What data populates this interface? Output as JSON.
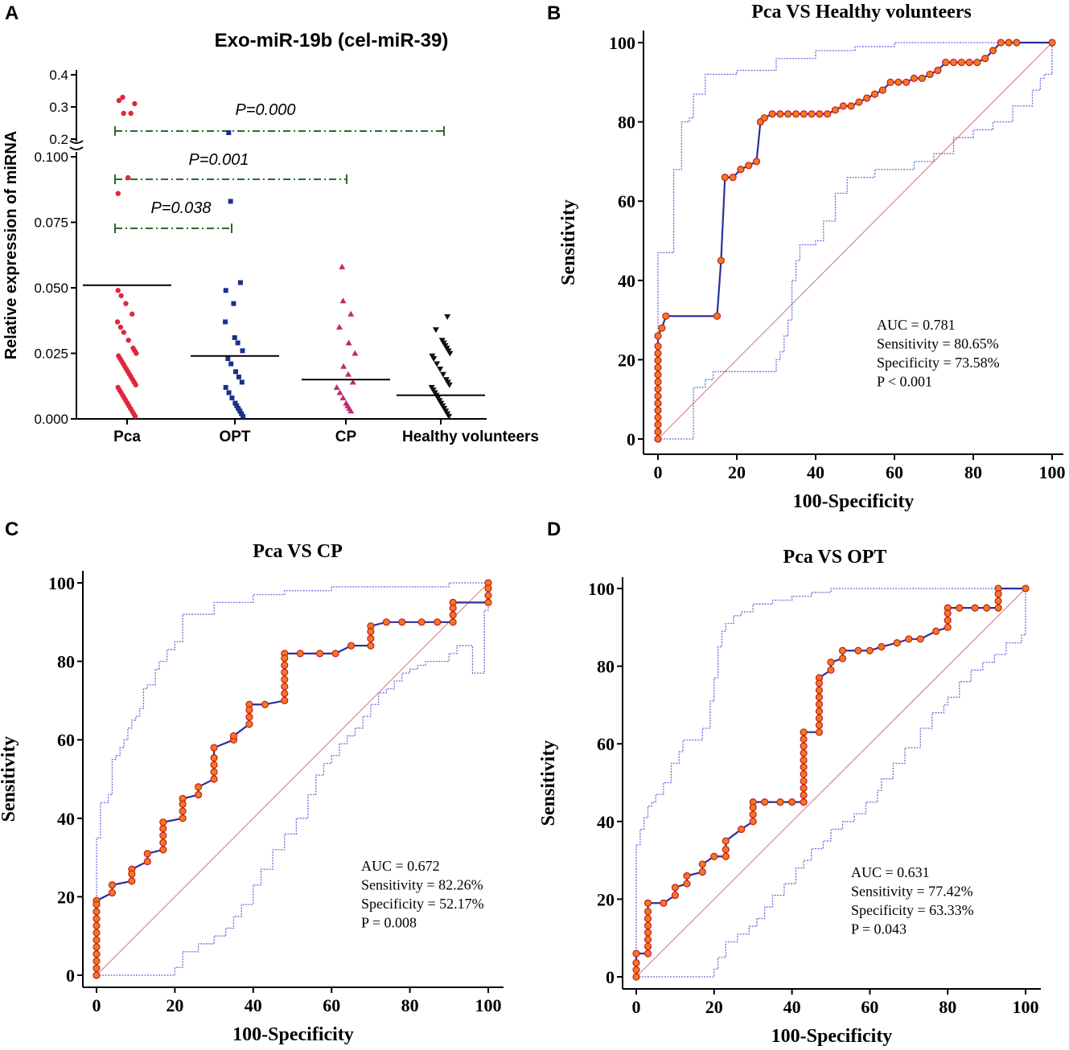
{
  "panel_letters": [
    "A",
    "B",
    "C",
    "D"
  ],
  "colors": {
    "pca": "#e0263e",
    "opt": "#1c2f8a",
    "cp": "#c0286e",
    "hv": "#111111",
    "bracket": "#2a6a2a",
    "roc_line": "#2a2fa0",
    "roc_marker_fill": "#f07a22",
    "roc_marker_stroke": "#c81c1c",
    "ci": "#6a6ae0",
    "diagonal": "#d68a8a"
  },
  "chart_data": [
    {
      "type": "scatter",
      "panel": "A",
      "title": "Exo-miR-19b (cel-miR-39)",
      "ylabel": "Relative expression of miRNA",
      "xlabel": "",
      "categories": [
        "Pca",
        "OPT",
        "CP",
        "Healthy volunteers"
      ],
      "broken_axis": {
        "lower_range": [
          0,
          0.1
        ],
        "upper_range": [
          0.2,
          0.4
        ],
        "lower_ticks": [
          "0.000",
          "0.025",
          "0.050",
          "0.075",
          "0.100"
        ],
        "upper_ticks": [
          "0.2",
          "0.3",
          "0.4"
        ]
      },
      "means": [
        0.051,
        0.024,
        0.015,
        0.009
      ],
      "comparisons": [
        {
          "label": "P=0.000",
          "from": "Pca",
          "to": "Healthy volunteers"
        },
        {
          "label": "P=0.001",
          "from": "Pca",
          "to": "CP"
        },
        {
          "label": "P=0.038",
          "from": "Pca",
          "to": "OPT"
        }
      ],
      "series": [
        {
          "name": "Pca",
          "marker": "circle",
          "values": [
            0.33,
            0.32,
            0.31,
            0.28,
            0.28,
            0.092,
            0.086,
            0.049,
            0.047,
            0.044,
            0.04,
            0.037,
            0.035,
            0.033,
            0.03,
            0.027,
            0.026,
            0.025,
            0.024,
            0.023,
            0.022,
            0.021,
            0.02,
            0.019,
            0.018,
            0.017,
            0.016,
            0.015,
            0.014,
            0.013,
            0.012,
            0.011,
            0.01,
            0.009,
            0.008,
            0.007,
            0.006,
            0.005,
            0.004,
            0.003,
            0.002,
            0.001
          ]
        },
        {
          "name": "OPT",
          "marker": "square",
          "values": [
            0.22,
            0.083,
            0.052,
            0.049,
            0.044,
            0.037,
            0.031,
            0.029,
            0.026,
            0.023,
            0.021,
            0.018,
            0.016,
            0.014,
            0.012,
            0.01,
            0.008,
            0.006,
            0.005,
            0.004,
            0.003,
            0.002,
            0.001
          ]
        },
        {
          "name": "CP",
          "marker": "triangle-up",
          "values": [
            0.058,
            0.045,
            0.04,
            0.035,
            0.029,
            0.025,
            0.02,
            0.017,
            0.014,
            0.012,
            0.01,
            0.008,
            0.006,
            0.005,
            0.004,
            0.003
          ]
        },
        {
          "name": "Healthy volunteers",
          "marker": "triangle-down",
          "values": [
            0.039,
            0.034,
            0.03,
            0.029,
            0.028,
            0.027,
            0.026,
            0.025,
            0.024,
            0.023,
            0.021,
            0.019,
            0.017,
            0.015,
            0.014,
            0.013,
            0.012,
            0.011,
            0.01,
            0.009,
            0.008,
            0.007,
            0.006,
            0.005,
            0.004,
            0.003,
            0.002,
            0.001
          ]
        }
      ]
    },
    {
      "type": "line",
      "panel": "B",
      "title": "Pca VS Healthy volunteers",
      "xlabel": "100-Specificity",
      "ylabel": "Sensitivity",
      "xlim": [
        0,
        100
      ],
      "ylim": [
        0,
        100
      ],
      "xticks": [
        "0",
        "20",
        "40",
        "60",
        "80",
        "100"
      ],
      "yticks": [
        "0",
        "20",
        "40",
        "60",
        "80",
        "100"
      ],
      "stats": [
        "AUC = 0.781",
        "Sensitivity = 80.65%",
        "Specificity = 73.58%",
        "P < 0.001"
      ],
      "roc": {
        "x": [
          0,
          0,
          1,
          2,
          15,
          16,
          17,
          19,
          21,
          23,
          25,
          26,
          27,
          29,
          31,
          33,
          35,
          37,
          39,
          41,
          43,
          45,
          47,
          49,
          51,
          53,
          55,
          57,
          59,
          61,
          63,
          65,
          67,
          69,
          71,
          73,
          75,
          77,
          79,
          81,
          83,
          85,
          87,
          89,
          91,
          100
        ],
        "y": [
          0,
          26,
          28,
          31,
          31,
          45,
          66,
          66,
          68,
          69,
          70,
          80,
          81,
          82,
          82,
          82,
          82,
          82,
          82,
          82,
          82,
          83,
          84,
          84,
          85,
          86,
          87,
          88,
          90,
          90,
          90,
          91,
          91,
          92,
          93,
          95,
          95,
          95,
          95,
          95,
          96,
          98,
          100,
          100,
          100,
          100
        ]
      },
      "ci_upper": {
        "x": [
          0,
          0,
          3,
          4,
          4,
          6,
          6,
          8,
          9,
          9,
          12,
          12,
          14,
          16,
          20,
          30,
          40,
          50,
          60,
          70,
          80,
          90,
          100
        ],
        "y": [
          0,
          47,
          47,
          62,
          68,
          74,
          80,
          81,
          83,
          87,
          91,
          92,
          92,
          92,
          93,
          96,
          98,
          99,
          100,
          100,
          100,
          100,
          100
        ]
      },
      "ci_lower": {
        "x": [
          0,
          0,
          9,
          9,
          12,
          14,
          16,
          30,
          30,
          31,
          32,
          33,
          34,
          35,
          36,
          40,
          42,
          45,
          48,
          55,
          60,
          65,
          70,
          75,
          80,
          85,
          90,
          95,
          97,
          98,
          98,
          100
        ]
      },
      "ci_lower_y": [
        0,
        0,
        0,
        13,
        15,
        17,
        17,
        17,
        20,
        22,
        26,
        30,
        40,
        45,
        49,
        50,
        55,
        62,
        66,
        68,
        68,
        70,
        72,
        76,
        78,
        80,
        84,
        88,
        91,
        92,
        92,
        100
      ]
    },
    {
      "type": "line",
      "panel": "C",
      "title": "Pca VS CP",
      "xlabel": "100-Specificity",
      "ylabel": "Sensitivity",
      "xlim": [
        0,
        100
      ],
      "ylim": [
        0,
        100
      ],
      "xticks": [
        "0",
        "20",
        "40",
        "60",
        "80",
        "100"
      ],
      "yticks": [
        "0",
        "20",
        "40",
        "60",
        "80",
        "100"
      ],
      "stats": [
        "AUC = 0.672",
        "Sensitivity = 82.26%",
        "Specificity = 52.17%",
        "P = 0.008"
      ],
      "roc": {
        "x": [
          0,
          0,
          4,
          4,
          9,
          9,
          13,
          13,
          17,
          17,
          22,
          22,
          26,
          26,
          30,
          30,
          35,
          35,
          39,
          39,
          43,
          48,
          48,
          52,
          57,
          61,
          65,
          70,
          70,
          74,
          78,
          83,
          87,
          91,
          91,
          100,
          100
        ],
        "y": [
          0,
          19,
          21,
          23,
          24,
          27,
          29,
          31,
          32,
          39,
          40,
          45,
          46,
          48,
          50,
          58,
          60,
          61,
          64,
          69,
          69,
          70,
          82,
          82,
          82,
          82,
          84,
          84,
          89,
          90,
          90,
          90,
          90,
          90,
          95,
          95,
          100
        ]
      },
      "ci_upper": {
        "x": [
          0,
          0,
          1,
          1,
          2,
          3,
          4,
          5,
          6,
          7,
          8,
          9,
          10,
          11,
          12,
          13,
          15,
          16,
          18,
          20,
          22,
          30,
          40,
          48,
          60,
          70,
          80,
          90,
          100
        ],
        "y": [
          0,
          35,
          40,
          44,
          44,
          46,
          55,
          56,
          58,
          60,
          63,
          65,
          66,
          68,
          73,
          74,
          78,
          80,
          83,
          85,
          92,
          95,
          97,
          98,
          99,
          99,
          99,
          100,
          100
        ]
      },
      "ci_lower": {
        "x": [
          0,
          20,
          20,
          22,
          26,
          30,
          33,
          35,
          37,
          40,
          42,
          45,
          48,
          51,
          54,
          56,
          58,
          60,
          62,
          64,
          66,
          68,
          70,
          72,
          74,
          76,
          78,
          80,
          82,
          84,
          86,
          88,
          90,
          92,
          96,
          99,
          99,
          100
        ]
      },
      "ci_lower_y": [
        0,
        0,
        2,
        6,
        8,
        10,
        12,
        15,
        18,
        23,
        27,
        32,
        36,
        40,
        46,
        51,
        54,
        56,
        59,
        61,
        63,
        66,
        69,
        72,
        73,
        75,
        77,
        78,
        79,
        80,
        80,
        80,
        82,
        84,
        77,
        77,
        93,
        100
      ]
    },
    {
      "type": "line",
      "panel": "D",
      "title": "Pca VS OPT",
      "xlabel": "100-Specificity",
      "ylabel": "Sensitivity",
      "xlim": [
        0,
        100
      ],
      "ylim": [
        0,
        100
      ],
      "xticks": [
        "0",
        "20",
        "40",
        "60",
        "80",
        "100"
      ],
      "yticks": [
        "0",
        "20",
        "40",
        "60",
        "80",
        "100"
      ],
      "stats": [
        "AUC = 0.631",
        "Sensitivity = 77.42%",
        "Specificity = 63.33%",
        "P = 0.043"
      ],
      "roc": {
        "x": [
          0,
          0,
          3,
          3,
          7,
          10,
          10,
          13,
          13,
          17,
          17,
          20,
          23,
          23,
          27,
          30,
          30,
          33,
          37,
          40,
          43,
          43,
          47,
          47,
          50,
          50,
          53,
          53,
          57,
          60,
          63,
          67,
          70,
          73,
          77,
          80,
          80,
          83,
          87,
          90,
          93,
          93,
          100
        ],
        "y": [
          0,
          6,
          6,
          19,
          19,
          21,
          23,
          24,
          26,
          27,
          29,
          31,
          31,
          35,
          38,
          40,
          45,
          45,
          45,
          45,
          45,
          63,
          63,
          77,
          79,
          81,
          82,
          84,
          84,
          84,
          85,
          86,
          87,
          87,
          89,
          90,
          95,
          95,
          95,
          95,
          95,
          100,
          100
        ]
      },
      "ci_upper": {
        "x": [
          0,
          0,
          1,
          1,
          2,
          3,
          4,
          5,
          7,
          9,
          11,
          12,
          13,
          15,
          17,
          19,
          20,
          21,
          22,
          23,
          25,
          27,
          30,
          35,
          40,
          45,
          50,
          60,
          70,
          80,
          90,
          100
        ],
        "y": [
          0,
          34,
          35,
          38,
          41,
          44,
          45,
          47,
          50,
          55,
          58,
          61,
          61,
          61,
          64,
          71,
          77,
          85,
          89,
          91,
          93,
          94,
          96,
          97,
          98,
          99,
          100,
          100,
          100,
          100,
          100,
          100
        ]
      },
      "ci_lower": {
        "x": [
          0,
          20,
          20,
          21,
          23,
          26,
          29,
          31,
          33,
          35,
          38,
          41,
          43,
          45,
          48,
          50,
          53,
          56,
          59,
          62,
          63,
          66,
          69,
          69,
          73,
          76,
          79,
          80,
          83,
          86,
          89,
          92,
          95,
          99,
          100
        ]
      },
      "ci_lower_y": [
        0,
        0,
        2,
        5,
        9,
        11,
        13,
        15,
        18,
        21,
        24,
        28,
        30,
        33,
        35,
        38,
        40,
        42,
        45,
        48,
        51,
        55,
        57,
        59,
        64,
        68,
        70,
        72,
        76,
        79,
        81,
        83,
        86,
        88,
        100
      ]
    }
  ]
}
